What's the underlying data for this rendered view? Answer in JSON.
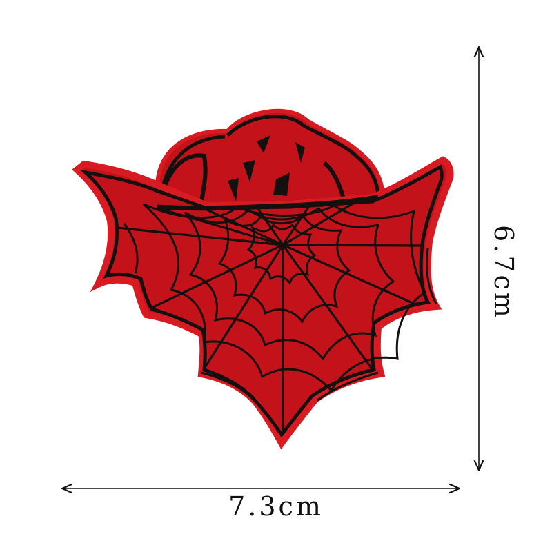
{
  "dimensions": {
    "width_label": "7.3cm",
    "height_label": "6.7cm"
  },
  "colors": {
    "patch_fill": "#c4121a",
    "patch_border": "#d81b22",
    "stitching": "#141010",
    "arrow": "#111111"
  },
  "icons": {
    "patch": "spiderweb-bat-patch-icon"
  }
}
